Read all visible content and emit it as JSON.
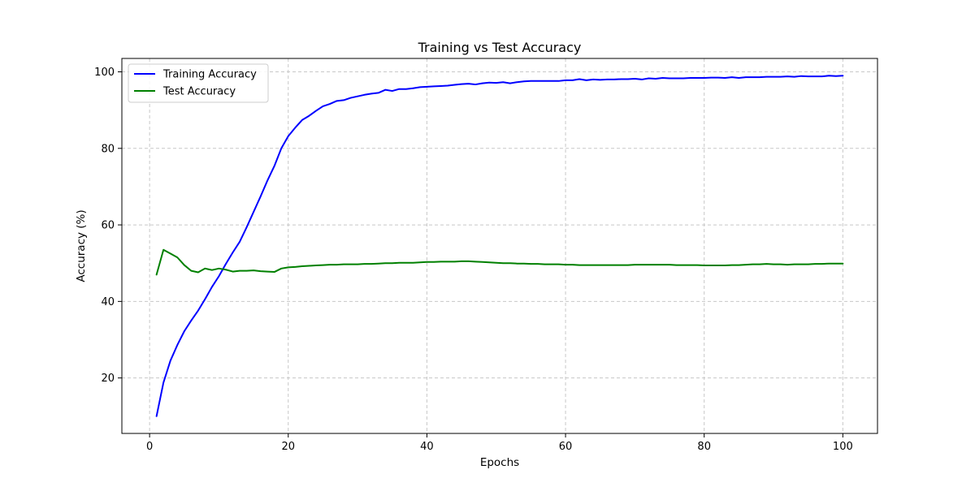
{
  "chart_data": {
    "type": "line",
    "title": "Training vs Test Accuracy",
    "xlabel": "Epochs",
    "ylabel": "Accuracy (%)",
    "xlim": [
      -4,
      105
    ],
    "ylim": [
      5.5,
      103.5
    ],
    "xticks": [
      0,
      20,
      40,
      60,
      80,
      100
    ],
    "yticks": [
      20,
      40,
      60,
      80,
      100
    ],
    "grid": true,
    "grid_style": "dashed",
    "legend_position": "top-left",
    "x": [
      1,
      2,
      3,
      4,
      5,
      6,
      7,
      8,
      9,
      10,
      11,
      12,
      13,
      14,
      15,
      16,
      17,
      18,
      19,
      20,
      21,
      22,
      23,
      24,
      25,
      26,
      27,
      28,
      29,
      30,
      31,
      32,
      33,
      34,
      35,
      36,
      37,
      38,
      39,
      40,
      41,
      42,
      43,
      44,
      45,
      46,
      47,
      48,
      49,
      50,
      51,
      52,
      53,
      54,
      55,
      56,
      57,
      58,
      59,
      60,
      61,
      62,
      63,
      64,
      65,
      66,
      67,
      68,
      69,
      70,
      71,
      72,
      73,
      74,
      75,
      76,
      77,
      78,
      79,
      80,
      81,
      82,
      83,
      84,
      85,
      86,
      87,
      88,
      89,
      90,
      91,
      92,
      93,
      94,
      95,
      96,
      97,
      98,
      99,
      100
    ],
    "series": [
      {
        "name": "Training Accuracy",
        "color": "#0000ff",
        "values": [
          10.0,
          18.8,
          24.5,
          28.6,
          32.2,
          35.0,
          37.6,
          40.6,
          43.8,
          46.6,
          49.8,
          52.8,
          55.6,
          59.4,
          63.4,
          67.4,
          71.6,
          75.4,
          80.0,
          83.2,
          85.4,
          87.4,
          88.5,
          89.8,
          91.0,
          91.6,
          92.4,
          92.6,
          93.2,
          93.6,
          94.0,
          94.3,
          94.5,
          95.3,
          95.0,
          95.5,
          95.5,
          95.7,
          96.0,
          96.1,
          96.2,
          96.3,
          96.4,
          96.6,
          96.8,
          96.9,
          96.7,
          97.0,
          97.2,
          97.1,
          97.3,
          97.0,
          97.3,
          97.5,
          97.6,
          97.6,
          97.6,
          97.6,
          97.6,
          97.8,
          97.8,
          98.1,
          97.8,
          98.0,
          97.9,
          98.0,
          98.0,
          98.1,
          98.1,
          98.2,
          98.0,
          98.3,
          98.2,
          98.4,
          98.3,
          98.3,
          98.3,
          98.4,
          98.4,
          98.4,
          98.5,
          98.5,
          98.4,
          98.6,
          98.4,
          98.6,
          98.6,
          98.6,
          98.7,
          98.7,
          98.7,
          98.8,
          98.7,
          98.9,
          98.8,
          98.8,
          98.8,
          99.0,
          98.9,
          99.0
        ]
      },
      {
        "name": "Test Accuracy",
        "color": "#008000",
        "values": [
          47.0,
          53.5,
          52.5,
          51.5,
          49.5,
          48.0,
          47.6,
          48.6,
          48.2,
          48.6,
          48.3,
          47.8,
          48.0,
          48.0,
          48.1,
          47.9,
          47.8,
          47.7,
          48.6,
          48.9,
          49.0,
          49.2,
          49.3,
          49.4,
          49.5,
          49.6,
          49.6,
          49.7,
          49.7,
          49.7,
          49.8,
          49.8,
          49.9,
          50.0,
          50.0,
          50.1,
          50.1,
          50.1,
          50.2,
          50.3,
          50.3,
          50.4,
          50.4,
          50.4,
          50.5,
          50.5,
          50.4,
          50.3,
          50.2,
          50.1,
          50.0,
          50.0,
          49.9,
          49.9,
          49.8,
          49.8,
          49.7,
          49.7,
          49.7,
          49.6,
          49.6,
          49.5,
          49.5,
          49.5,
          49.5,
          49.5,
          49.5,
          49.5,
          49.5,
          49.6,
          49.6,
          49.6,
          49.6,
          49.6,
          49.6,
          49.5,
          49.5,
          49.5,
          49.5,
          49.4,
          49.4,
          49.4,
          49.4,
          49.5,
          49.5,
          49.6,
          49.7,
          49.7,
          49.8,
          49.7,
          49.7,
          49.6,
          49.7,
          49.7,
          49.7,
          49.8,
          49.8,
          49.9,
          49.9,
          49.9
        ]
      }
    ]
  }
}
